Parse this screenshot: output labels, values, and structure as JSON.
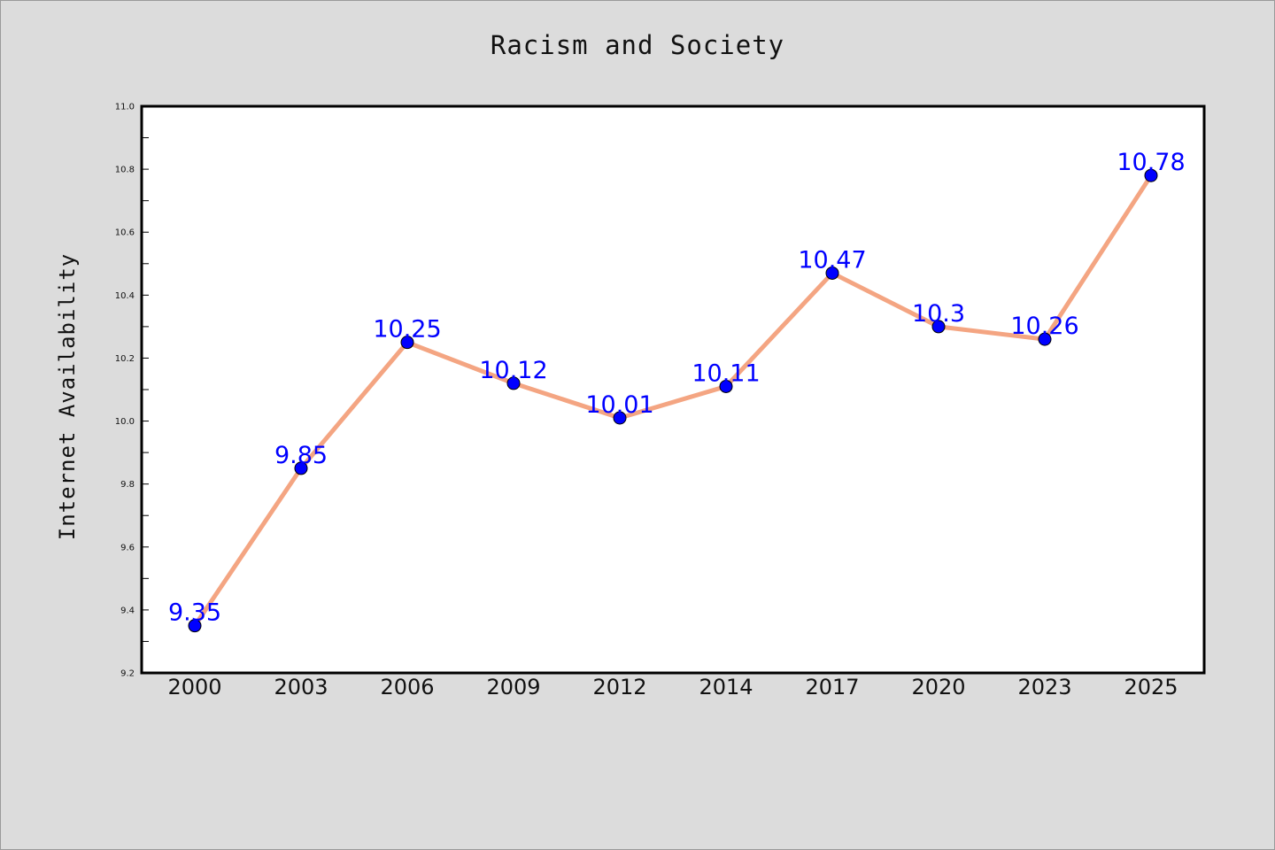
{
  "chart_data": {
    "type": "line",
    "title": "Racism and Society",
    "xlabel": "",
    "ylabel": "Internet Availability",
    "categories": [
      "2000",
      "2003",
      "2006",
      "2009",
      "2012",
      "2014",
      "2017",
      "2020",
      "2023",
      "2025"
    ],
    "series": [
      {
        "values": [
          9.35,
          9.85,
          10.25,
          10.12,
          10.01,
          10.11,
          10.47,
          10.3,
          10.26,
          10.78
        ],
        "labels": [
          "9.35",
          "9.85",
          "10.25",
          "10.12",
          "10.01",
          "10.11",
          "10.47",
          "10.3",
          "10.26",
          "10.78"
        ],
        "line_color": "#f4a582",
        "marker_color": "#0000ff",
        "label_color": "#0000ff"
      }
    ],
    "ylim": [
      9.2,
      11.0
    ],
    "yticks": [
      "9.2",
      "9.4",
      "9.6",
      "9.8",
      "10.0",
      "10.2",
      "10.4",
      "10.6",
      "10.8",
      "11.0"
    ],
    "grid": false,
    "legend": "none"
  }
}
